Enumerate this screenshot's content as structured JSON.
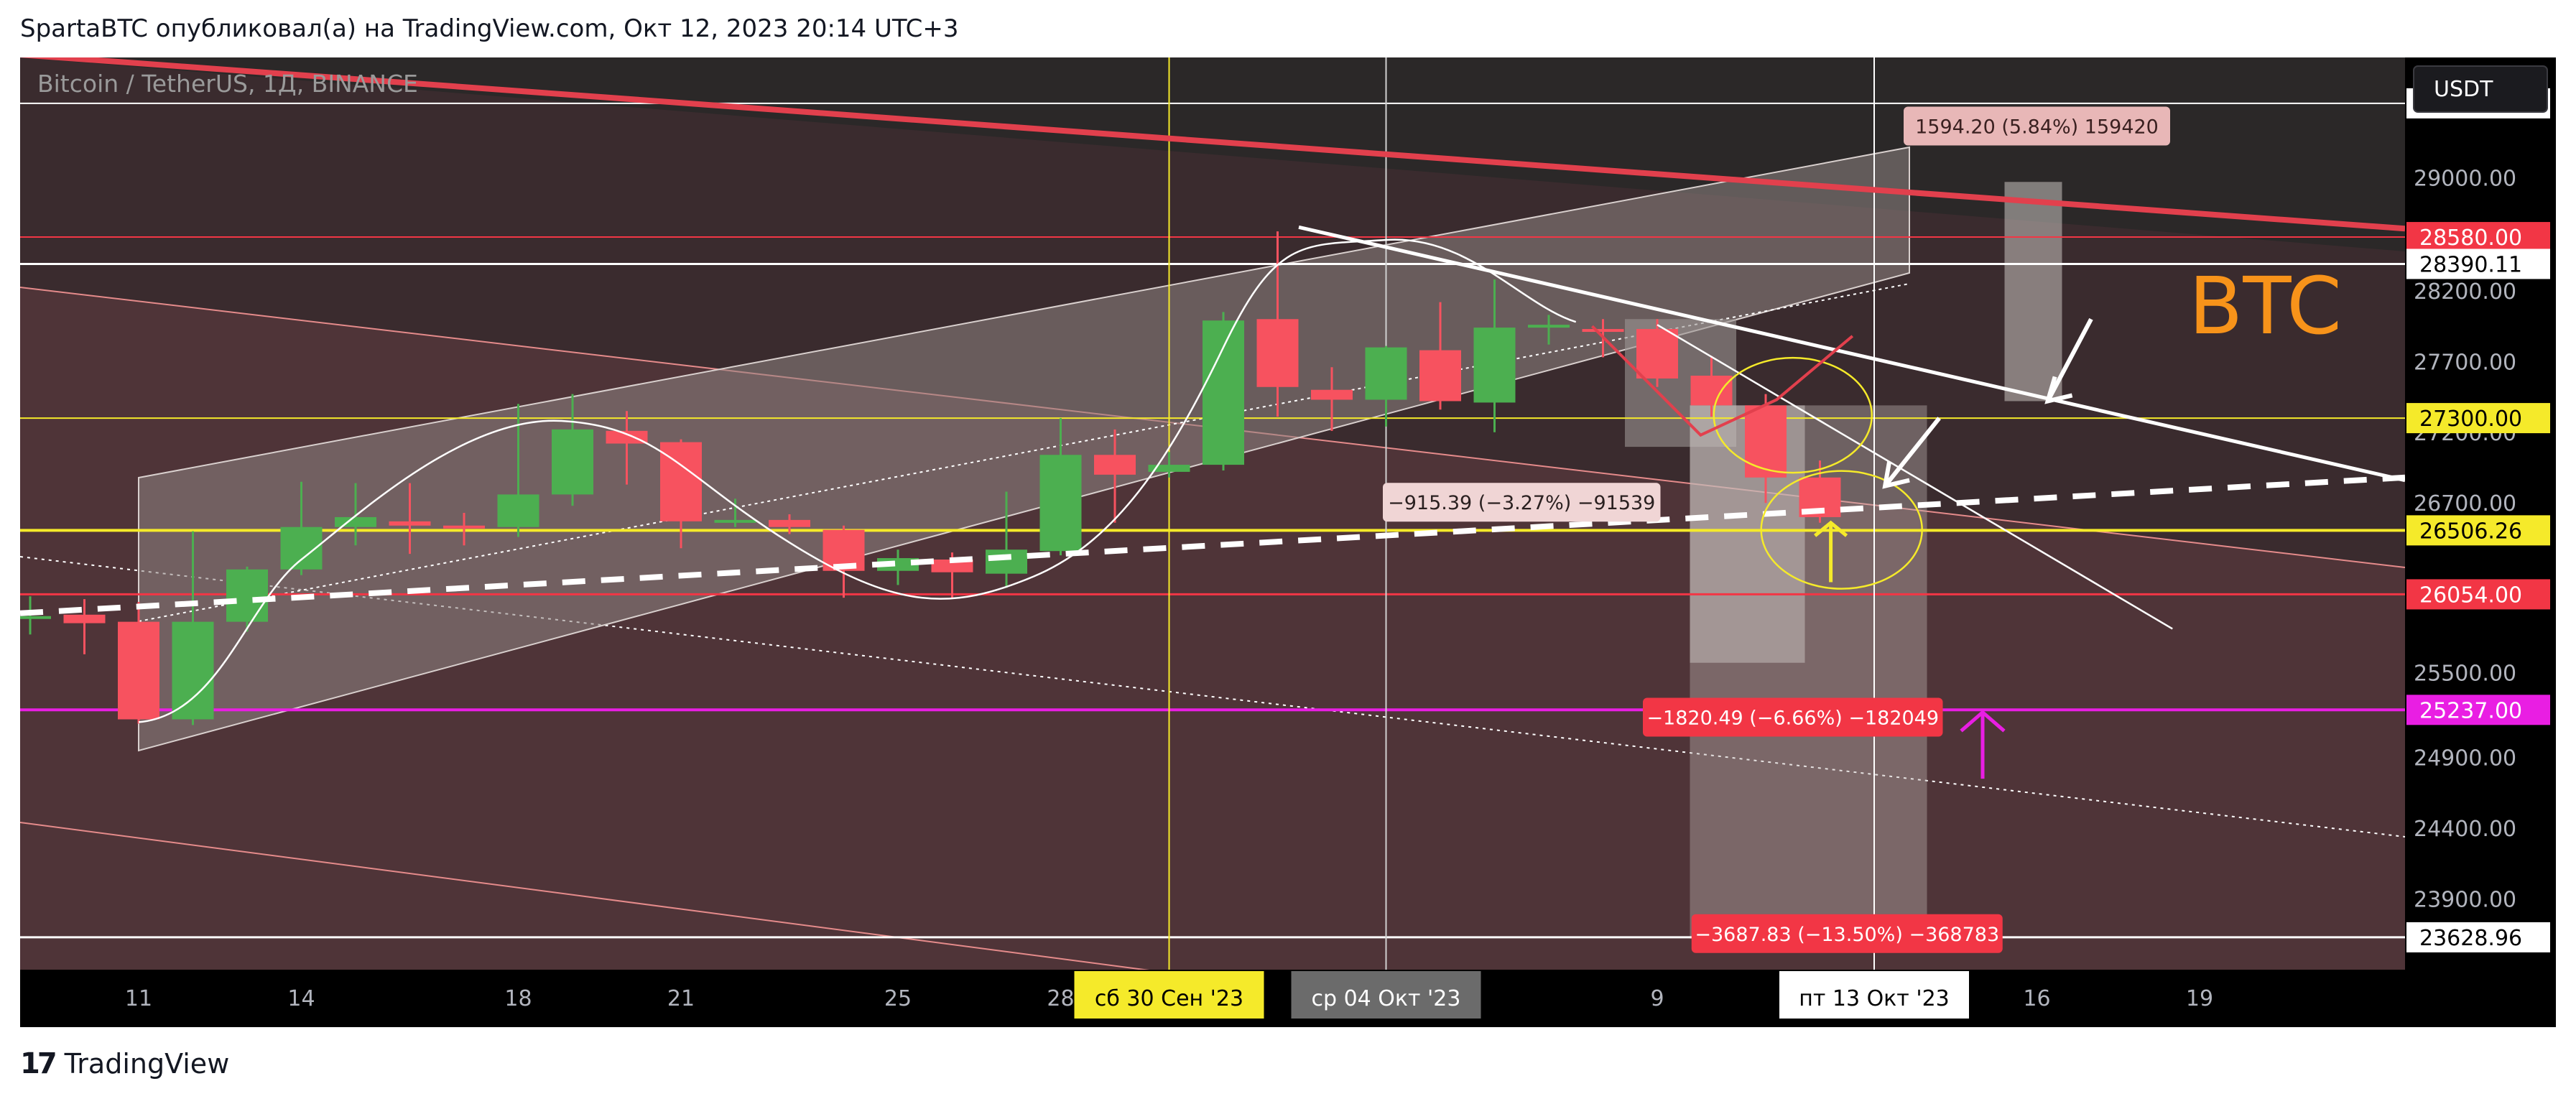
{
  "header": {
    "text": "SpartaBTC опубликовал(а) на TradingView.com, Окт 12, 2023 20:14 UTC+3"
  },
  "footer": {
    "brand_logo": "17",
    "brand_name": "TradingView"
  },
  "chart_data": {
    "type": "candlestick",
    "symbol_label": "Bitcoin / TetherUS, 1Д, BINANCE",
    "currency_button": "USDT",
    "watermark": "BTC",
    "y_range": [
      23400,
      29850
    ],
    "x_ticks": [
      {
        "label": "11",
        "day": 0
      },
      {
        "label": "14",
        "day": 3
      },
      {
        "label": "18",
        "day": 7
      },
      {
        "label": "21",
        "day": 10
      },
      {
        "label": "25",
        "day": 14
      },
      {
        "label": "28",
        "day": 17
      },
      {
        "label": "9",
        "day": 28
      },
      {
        "label": "16",
        "day": 35
      },
      {
        "label": "19",
        "day": 38
      }
    ],
    "x_highlight_labels": [
      {
        "label": "сб 30 Сен '23",
        "day": 19,
        "bg": "#f5ea2a",
        "fg": "#000000"
      },
      {
        "label": "ср 04 Окт '23",
        "day": 23,
        "bg": "#6b6b6b",
        "fg": "#ffffff"
      },
      {
        "label": "пт 13 Окт '23",
        "day": 32,
        "bg": "#ffffff",
        "fg": "#000000"
      }
    ],
    "y_ticks": [
      29000,
      28200,
      27700,
      27200,
      26700,
      25500,
      24900,
      24400,
      23900
    ],
    "price_labels": [
      {
        "value": "29525.61",
        "price": 29525.61,
        "bg": "#ffffff",
        "fg": "#000000"
      },
      {
        "value": "28580.00",
        "price": 28580,
        "bg": "#f23645",
        "fg": "#ffffff"
      },
      {
        "value": "28390.11",
        "price": 28390.11,
        "bg": "#ffffff",
        "fg": "#000000"
      },
      {
        "value": "27300.00",
        "price": 27300,
        "bg": "#f5ea2a",
        "fg": "#000000"
      },
      {
        "value": "26506.26",
        "price": 26506.26,
        "bg": "#f5ea2a",
        "fg": "#000000"
      },
      {
        "value": "26054.00",
        "price": 26054,
        "bg": "#f23645",
        "fg": "#ffffff"
      },
      {
        "value": "25237.00",
        "price": 25237,
        "bg": "#e91ee3",
        "fg": "#ffffff"
      },
      {
        "value": "23628.96",
        "price": 23628.96,
        "bg": "#ffffff",
        "fg": "#000000"
      }
    ],
    "horizontal_lines": [
      {
        "price": 29525.61,
        "color": "#ffffff",
        "width": 2
      },
      {
        "price": 28580,
        "color": "#f23645",
        "width": 2
      },
      {
        "price": 28390.11,
        "color": "#ffffff",
        "width": 3
      },
      {
        "price": 27300,
        "color": "#f5ea2a",
        "width": 2
      },
      {
        "price": 26506.26,
        "color": "#f5ea2a",
        "width": 4
      },
      {
        "price": 26054,
        "color": "#f23645",
        "width": 3
      },
      {
        "price": 25237,
        "color": "#e91ee3",
        "width": 4
      },
      {
        "price": 23628.96,
        "color": "#ffffff",
        "width": 3
      }
    ],
    "vertical_lines": [
      {
        "day": 19,
        "color": "#f5ea2a"
      },
      {
        "day": 23,
        "color": "#d0d0d0"
      },
      {
        "day": 32,
        "color": "#ffffff"
      }
    ],
    "candles": [
      {
        "day": -2,
        "open": 25880,
        "high": 26040,
        "low": 25770,
        "close": 25900
      },
      {
        "day": -1,
        "open": 25910,
        "high": 26020,
        "low": 25630,
        "close": 25850
      },
      {
        "day": 0,
        "open": 25860,
        "high": 26000,
        "low": 25140,
        "close": 25170
      },
      {
        "day": 1,
        "open": 25170,
        "high": 26500,
        "low": 25130,
        "close": 25860
      },
      {
        "day": 2,
        "open": 25860,
        "high": 26250,
        "low": 25790,
        "close": 26230
      },
      {
        "day": 3,
        "open": 26230,
        "high": 26850,
        "low": 26190,
        "close": 26530
      },
      {
        "day": 4,
        "open": 26530,
        "high": 26840,
        "low": 26400,
        "close": 26600
      },
      {
        "day": 5,
        "open": 26570,
        "high": 26840,
        "low": 26340,
        "close": 26540
      },
      {
        "day": 6,
        "open": 26540,
        "high": 26630,
        "low": 26400,
        "close": 26530
      },
      {
        "day": 7,
        "open": 26530,
        "high": 27400,
        "low": 26460,
        "close": 26760
      },
      {
        "day": 8,
        "open": 26760,
        "high": 27470,
        "low": 26680,
        "close": 27220
      },
      {
        "day": 9,
        "open": 27210,
        "high": 27350,
        "low": 26830,
        "close": 27120
      },
      {
        "day": 10,
        "open": 27130,
        "high": 27150,
        "low": 26380,
        "close": 26570
      },
      {
        "day": 11,
        "open": 26570,
        "high": 26730,
        "low": 26530,
        "close": 26580
      },
      {
        "day": 12,
        "open": 26580,
        "high": 26620,
        "low": 26480,
        "close": 26530
      },
      {
        "day": 13,
        "open": 26510,
        "high": 26540,
        "low": 26030,
        "close": 26220
      },
      {
        "day": 14,
        "open": 26220,
        "high": 26370,
        "low": 26120,
        "close": 26310
      },
      {
        "day": 15,
        "open": 26300,
        "high": 26350,
        "low": 26030,
        "close": 26210
      },
      {
        "day": 16,
        "open": 26200,
        "high": 26780,
        "low": 26100,
        "close": 26370
      },
      {
        "day": 17,
        "open": 26360,
        "high": 27300,
        "low": 26330,
        "close": 27040
      },
      {
        "day": 18,
        "open": 27040,
        "high": 27220,
        "low": 26560,
        "close": 26900
      },
      {
        "day": 19,
        "open": 26920,
        "high": 27060,
        "low": 26880,
        "close": 26970
      },
      {
        "day": 20,
        "open": 26970,
        "high": 28050,
        "low": 26930,
        "close": 27990
      },
      {
        "day": 21,
        "open": 28000,
        "high": 28620,
        "low": 27310,
        "close": 27520
      },
      {
        "day": 22,
        "open": 27500,
        "high": 27660,
        "low": 27210,
        "close": 27430
      },
      {
        "day": 23,
        "open": 27430,
        "high": 27810,
        "low": 27240,
        "close": 27800
      },
      {
        "day": 24,
        "open": 27780,
        "high": 28120,
        "low": 27360,
        "close": 27420
      },
      {
        "day": 25,
        "open": 27410,
        "high": 28280,
        "low": 27200,
        "close": 27940
      },
      {
        "day": 26,
        "open": 27940,
        "high": 28030,
        "low": 27820,
        "close": 27960
      },
      {
        "day": 27,
        "open": 27930,
        "high": 28000,
        "low": 27730,
        "close": 27910
      },
      {
        "day": 28,
        "open": 27930,
        "high": 28000,
        "low": 27520,
        "close": 27580
      },
      {
        "day": 29,
        "open": 27600,
        "high": 27740,
        "low": 27310,
        "close": 27390
      },
      {
        "day": 30,
        "open": 27390,
        "high": 27470,
        "low": 26700,
        "close": 26880
      },
      {
        "day": 31,
        "open": 26880,
        "high": 27000,
        "low": 26560,
        "close": 26600
      }
    ],
    "measure_labels": [
      {
        "text": "1594.20 (5.84%) 159420",
        "style": "pink"
      },
      {
        "text": "−915.39 (−3.27%) −91539",
        "style": "light"
      },
      {
        "text": "−1820.49 (−6.66%) −182049",
        "style": "red"
      },
      {
        "text": "−3687.83 (−13.50%) −368783",
        "style": "red"
      }
    ],
    "colors": {
      "up": "#4caf50",
      "down": "#f7525f",
      "axis_bg": "#000000",
      "plot_bg": "#2a2626"
    }
  }
}
